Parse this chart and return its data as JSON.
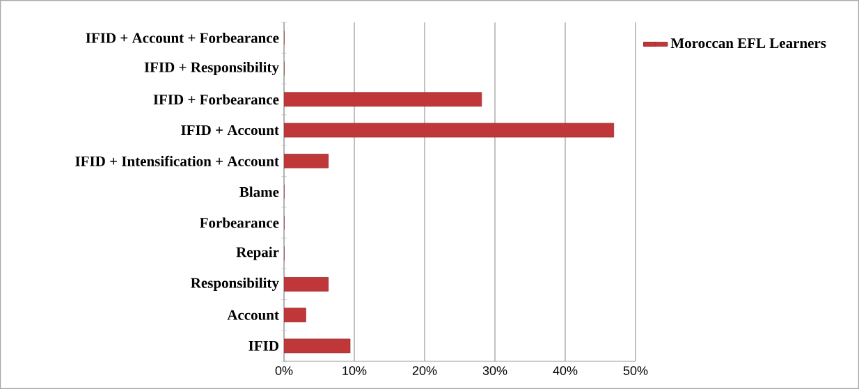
{
  "chart_data": {
    "type": "bar",
    "orientation": "horizontal",
    "categories": [
      "IFID + Account + Forbearance",
      "IFID + Responsibility",
      "IFID + Forbearance",
      "IFID + Account",
      "IFID + Intensification + Account",
      "Blame",
      "Forbearance",
      "Repair",
      "Responsibility",
      "Account",
      "IFID"
    ],
    "series": [
      {
        "name": "Moroccan EFL Learners",
        "color": "#c0373a",
        "values": [
          0,
          0,
          28.1,
          46.9,
          6.3,
          0,
          0,
          0,
          6.3,
          3.1,
          9.4
        ]
      }
    ],
    "xlim": [
      0,
      50
    ],
    "xticks": [
      {
        "value": 0,
        "label": "0%"
      },
      {
        "value": 10,
        "label": "10%"
      },
      {
        "value": 20,
        "label": "20%"
      },
      {
        "value": 30,
        "label": "30%"
      },
      {
        "value": 40,
        "label": "40%"
      },
      {
        "value": 50,
        "label": "50%"
      }
    ],
    "grid": "x",
    "legend": "top right"
  }
}
